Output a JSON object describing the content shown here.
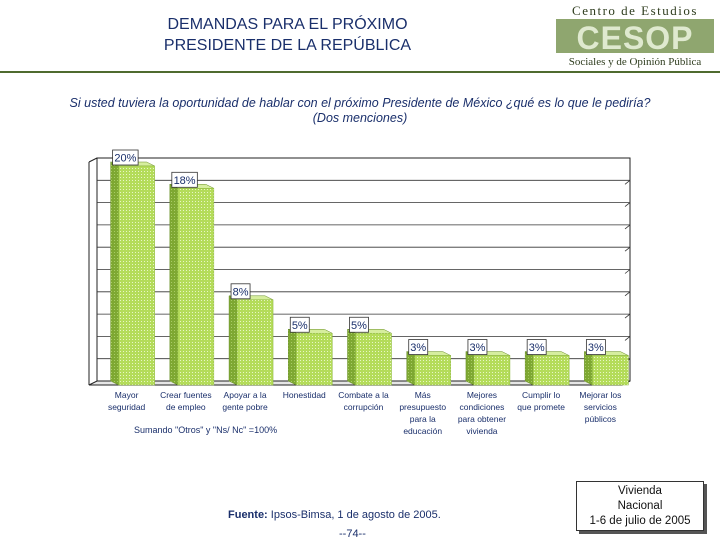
{
  "header": {
    "title_line1": "DEMANDAS PARA EL PRÓXIMO",
    "title_line2": "PRESIDENTE DE LA REPÚBLICA",
    "logo_line1": "Centro de Estudios",
    "logo_mark": "CESOP",
    "logo_line3": "Sociales y de Opinión Pública"
  },
  "question": {
    "line1": "Si usted tuviera la oportunidad de hablar con el próximo Presidente de México ¿qué es lo que le pediría?",
    "line2": "(Dos menciones)"
  },
  "chart_data": {
    "type": "bar",
    "title": "",
    "categories": [
      [
        "Mayor",
        "seguridad"
      ],
      [
        "Crear fuentes",
        "de empleo"
      ],
      [
        "Apoyar a la",
        "gente pobre"
      ],
      [
        "Honestidad"
      ],
      [
        "Combate a la",
        "corrupción"
      ],
      [
        "Más",
        "presupuesto",
        "para la",
        "educación"
      ],
      [
        "Mejores",
        "condiciones",
        "para obtener",
        "vivienda"
      ],
      [
        "Cumplir lo",
        "que promete"
      ],
      [
        "Mejorar los",
        "servicios",
        "públicos"
      ]
    ],
    "values": [
      20,
      18,
      8,
      5,
      5,
      3,
      3,
      3,
      3
    ],
    "value_labels": [
      "20%",
      "18%",
      "8%",
      "5%",
      "5%",
      "3%",
      "3%",
      "3%",
      "3%"
    ],
    "ylim": [
      0,
      20
    ],
    "gridlines": true,
    "colors": {
      "bar_front": "#b4dc5a",
      "bar_side": "#7ea832",
      "bar_top": "#d6ee9e",
      "grid": "#333333"
    }
  },
  "footnote": "Sumando \"Otros\" y \"Ns/ Nc\" =100%",
  "source": {
    "label": "Fuente:",
    "text": "Ipsos-Bimsa, 1 de agosto de 2005."
  },
  "page_number": "--74--",
  "box": {
    "line1": "Vivienda",
    "line2": "Nacional",
    "line3": "1-6 de julio de 2005"
  }
}
